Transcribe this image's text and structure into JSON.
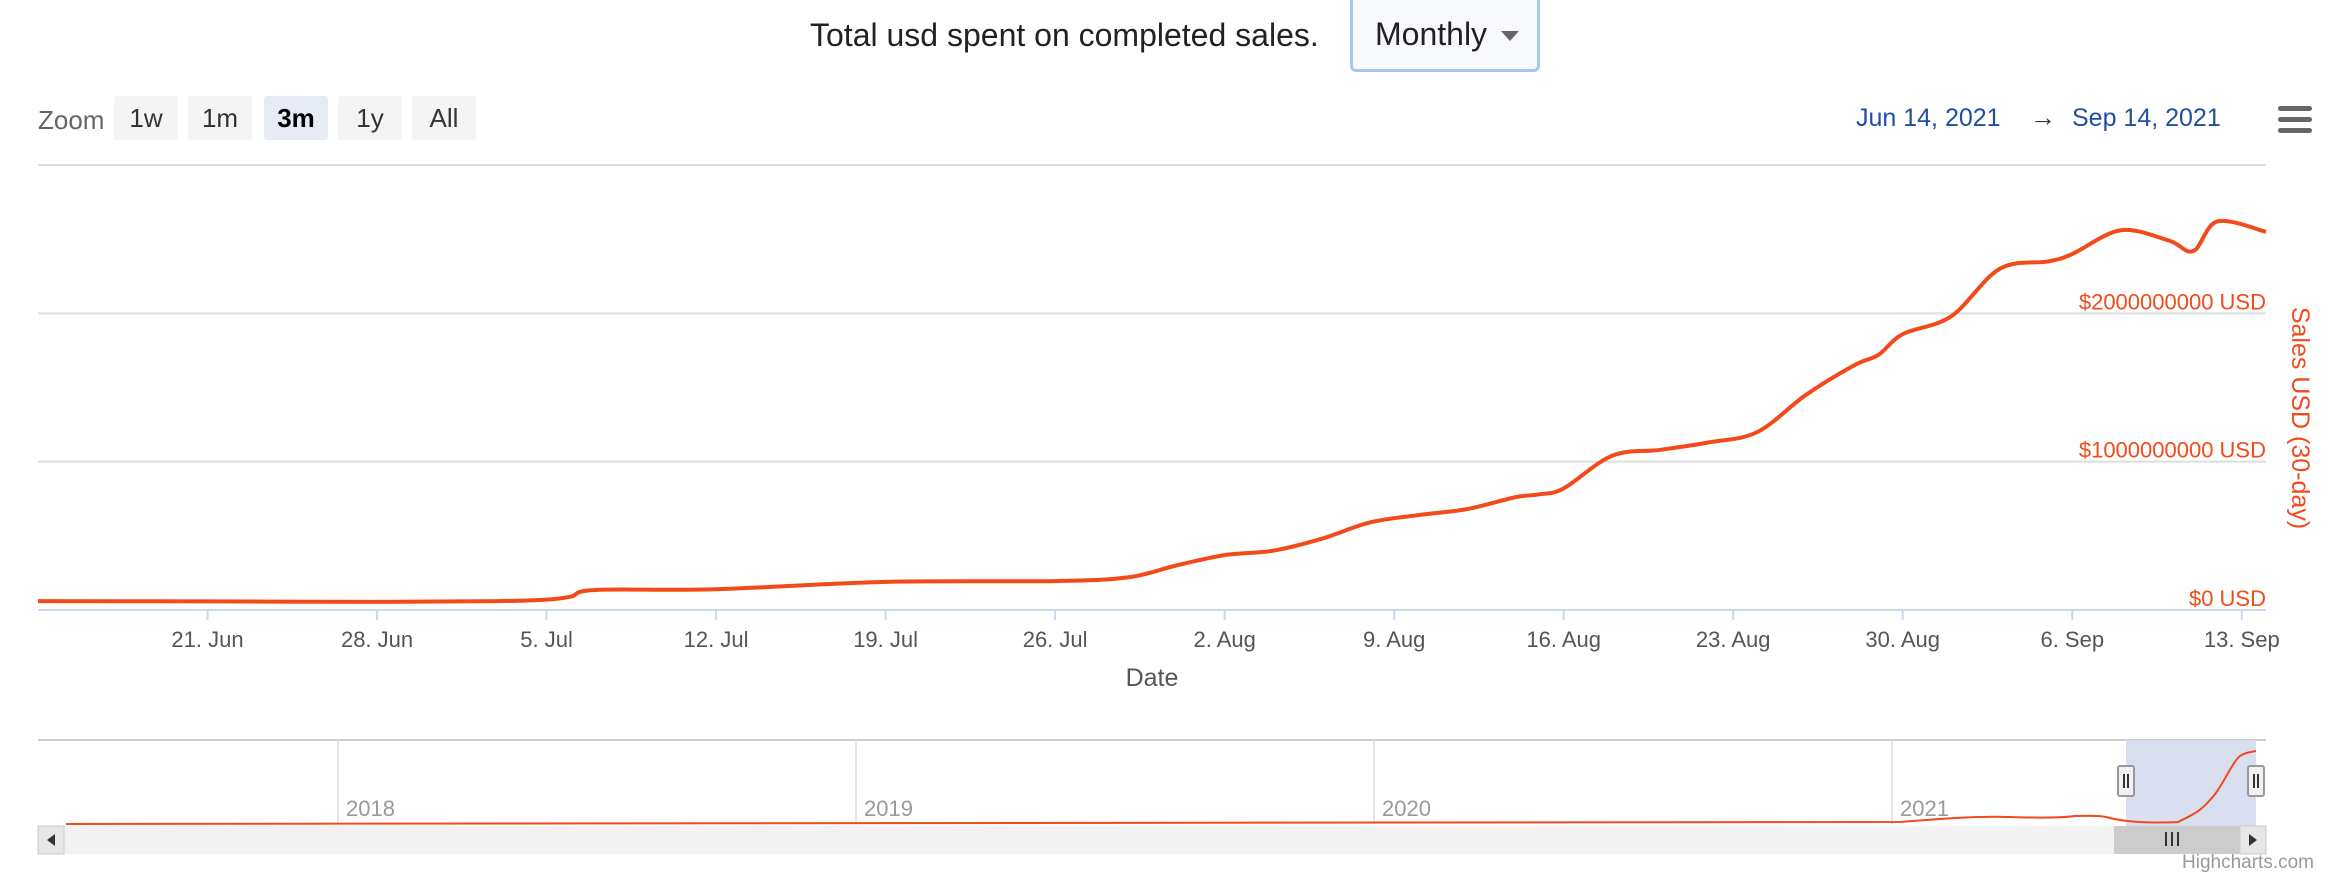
{
  "header": {
    "title": "Total usd spent on completed sales.",
    "period_select": "Monthly"
  },
  "toolbar": {
    "zoom_label": "Zoom",
    "zoom_buttons": [
      "1w",
      "1m",
      "3m",
      "1y",
      "All"
    ],
    "active_zoom": "3m",
    "range_from": "Jun 14, 2021",
    "range_arrow": "→",
    "range_to": "Sep 14, 2021",
    "menu_icon": "hamburger-menu-icon"
  },
  "colors": {
    "series": "#f24a1a",
    "axis_title": "#f24a1a",
    "date_range": "#1f4ea3",
    "navigator_mask": "#d2d9ec"
  },
  "chart_data": {
    "type": "line",
    "xlabel": "Date",
    "ylabel": "Sales USD (30-day)",
    "x_ticks": [
      "21. Jun",
      "28. Jun",
      "5. Jul",
      "12. Jul",
      "19. Jul",
      "26. Jul",
      "2. Aug",
      "9. Aug",
      "16. Aug",
      "23. Aug",
      "30. Aug",
      "6. Sep",
      "13. Sep"
    ],
    "y_ticks": [
      "$0 USD",
      "$1000000000 USD",
      "$2000000000 USD"
    ],
    "ylim": [
      0,
      3000000000
    ],
    "xlim": [
      "2021-06-14",
      "2021-09-14"
    ],
    "grid": true,
    "series": [
      {
        "x": [
          "2021-06-14",
          "2021-06-21",
          "2021-06-28",
          "2021-07-03",
          "2021-07-05",
          "2021-07-06",
          "2021-07-07",
          "2021-07-12",
          "2021-07-19",
          "2021-07-26",
          "2021-07-29",
          "2021-07-31",
          "2021-08-02",
          "2021-08-04",
          "2021-08-06",
          "2021-08-08",
          "2021-08-10",
          "2021-08-12",
          "2021-08-14",
          "2021-08-15",
          "2021-08-16",
          "2021-08-18",
          "2021-08-20",
          "2021-08-22",
          "2021-08-24",
          "2021-08-26",
          "2021-08-28",
          "2021-08-29",
          "2021-08-30",
          "2021-09-01",
          "2021-09-03",
          "2021-09-05",
          "2021-09-06",
          "2021-09-08",
          "2021-09-10",
          "2021-09-11",
          "2021-09-12",
          "2021-09-14"
        ],
        "y": [
          60000000,
          58000000,
          55000000,
          60000000,
          70000000,
          90000000,
          135000000,
          140000000,
          190000000,
          195000000,
          220000000,
          300000000,
          370000000,
          400000000,
          480000000,
          590000000,
          640000000,
          680000000,
          760000000,
          780000000,
          820000000,
          1040000000,
          1080000000,
          1130000000,
          1200000000,
          1450000000,
          1650000000,
          1720000000,
          1860000000,
          1980000000,
          2300000000,
          2350000000,
          2400000000,
          2560000000,
          2490000000,
          2420000000,
          2620000000,
          2550000000
        ]
      }
    ],
    "navigator": {
      "x_ticks": [
        "2018",
        "2019",
        "2020",
        "2021"
      ]
    }
  },
  "footer": {
    "credit": "Highcharts.com"
  }
}
